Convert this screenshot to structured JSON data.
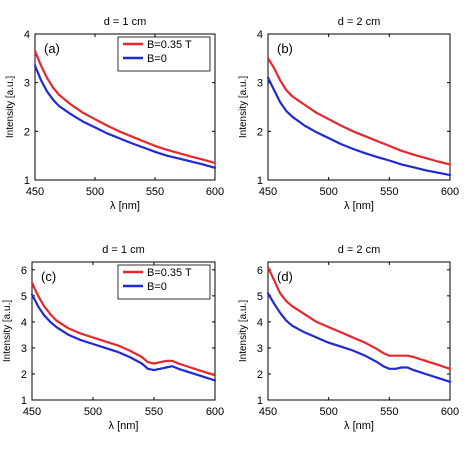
{
  "colors": {
    "red": "#e8262b",
    "blue": "#1f2ad6",
    "axis": "#000000"
  },
  "chart_data": [
    {
      "type": "line",
      "title": "d = 1 cm",
      "panel_label": "(a)",
      "xlabel": "λ [nm]",
      "ylabel": "Intensity [a.u.]",
      "xlim": [
        450,
        600
      ],
      "ylim": [
        1,
        4
      ],
      "xticks": [
        450,
        500,
        550,
        600
      ],
      "yticks": [
        1,
        2,
        3,
        4
      ],
      "legend": true,
      "legend_position": "top-right",
      "series": [
        {
          "name": "B=0.35 T",
          "color": "#e8262b",
          "x": [
            450,
            455,
            460,
            465,
            470,
            480,
            490,
            500,
            510,
            520,
            530,
            540,
            550,
            560,
            570,
            580,
            590,
            600
          ],
          "y": [
            3.65,
            3.35,
            3.1,
            2.9,
            2.75,
            2.55,
            2.38,
            2.25,
            2.12,
            2.0,
            1.9,
            1.8,
            1.7,
            1.62,
            1.55,
            1.48,
            1.42,
            1.35
          ]
        },
        {
          "name": "B=0",
          "color": "#1f2ad6",
          "x": [
            450,
            455,
            460,
            465,
            470,
            480,
            490,
            500,
            510,
            520,
            530,
            540,
            550,
            560,
            570,
            580,
            590,
            600
          ],
          "y": [
            3.35,
            3.05,
            2.82,
            2.65,
            2.52,
            2.35,
            2.2,
            2.08,
            1.96,
            1.86,
            1.76,
            1.67,
            1.58,
            1.5,
            1.44,
            1.38,
            1.32,
            1.25
          ]
        }
      ]
    },
    {
      "type": "line",
      "title": "d = 2 cm",
      "panel_label": "(b)",
      "xlabel": "λ [nm]",
      "ylabel": "Intensity [a.u.]",
      "xlim": [
        450,
        600
      ],
      "ylim": [
        1,
        4
      ],
      "xticks": [
        450,
        500,
        550,
        600
      ],
      "yticks": [
        1,
        2,
        3,
        4
      ],
      "legend": false,
      "series": [
        {
          "name": "B=0.35 T",
          "color": "#e8262b",
          "x": [
            450,
            455,
            460,
            465,
            470,
            480,
            490,
            500,
            510,
            520,
            530,
            540,
            550,
            560,
            570,
            580,
            590,
            600
          ],
          "y": [
            3.5,
            3.3,
            3.05,
            2.85,
            2.72,
            2.55,
            2.38,
            2.25,
            2.12,
            2.0,
            1.9,
            1.8,
            1.7,
            1.6,
            1.52,
            1.45,
            1.38,
            1.32
          ]
        },
        {
          "name": "B=0",
          "color": "#1f2ad6",
          "x": [
            450,
            455,
            460,
            465,
            470,
            480,
            490,
            500,
            510,
            520,
            530,
            540,
            550,
            560,
            570,
            580,
            590,
            600
          ],
          "y": [
            3.1,
            2.85,
            2.6,
            2.42,
            2.3,
            2.12,
            1.98,
            1.86,
            1.74,
            1.64,
            1.55,
            1.47,
            1.4,
            1.32,
            1.26,
            1.2,
            1.15,
            1.1
          ]
        }
      ]
    },
    {
      "type": "line",
      "title": "d = 1 cm",
      "panel_label": "(c)",
      "xlabel": "λ [nm]",
      "ylabel": "Intensity [a.u.]",
      "xlim": [
        450,
        600
      ],
      "ylim": [
        1,
        6.3
      ],
      "xticks": [
        450,
        500,
        550,
        600
      ],
      "yticks": [
        1,
        2,
        3,
        4,
        5,
        6
      ],
      "legend": true,
      "legend_position": "top-right",
      "series": [
        {
          "name": "B=0.35 T",
          "color": "#e8262b",
          "x": [
            450,
            455,
            460,
            465,
            470,
            480,
            490,
            500,
            510,
            520,
            530,
            540,
            545,
            550,
            555,
            560,
            565,
            570,
            580,
            590,
            600
          ],
          "y": [
            5.5,
            5.0,
            4.6,
            4.3,
            4.05,
            3.75,
            3.55,
            3.4,
            3.25,
            3.1,
            2.9,
            2.65,
            2.45,
            2.4,
            2.45,
            2.5,
            2.5,
            2.4,
            2.25,
            2.1,
            1.95
          ]
        },
        {
          "name": "B=0",
          "color": "#1f2ad6",
          "x": [
            450,
            455,
            460,
            465,
            470,
            480,
            490,
            500,
            510,
            520,
            530,
            540,
            545,
            550,
            555,
            560,
            565,
            570,
            580,
            590,
            600
          ],
          "y": [
            5.05,
            4.6,
            4.25,
            4.0,
            3.8,
            3.5,
            3.3,
            3.15,
            3.0,
            2.85,
            2.65,
            2.4,
            2.2,
            2.15,
            2.2,
            2.25,
            2.3,
            2.2,
            2.05,
            1.9,
            1.75
          ]
        }
      ]
    },
    {
      "type": "line",
      "title": "d = 2 cm",
      "panel_label": "(d)",
      "xlabel": "λ [nm]",
      "ylabel": "Intensity [a.u.]",
      "xlim": [
        450,
        600
      ],
      "ylim": [
        1,
        6.3
      ],
      "xticks": [
        450,
        500,
        550,
        600
      ],
      "yticks": [
        1,
        2,
        3,
        4,
        5,
        6
      ],
      "legend": false,
      "series": [
        {
          "name": "B=0.35 T",
          "color": "#e8262b",
          "x": [
            450,
            455,
            460,
            465,
            470,
            480,
            490,
            500,
            510,
            520,
            530,
            540,
            545,
            550,
            555,
            560,
            565,
            570,
            580,
            590,
            600
          ],
          "y": [
            6.1,
            5.6,
            5.1,
            4.8,
            4.6,
            4.3,
            4.0,
            3.8,
            3.6,
            3.4,
            3.2,
            2.95,
            2.8,
            2.7,
            2.7,
            2.7,
            2.7,
            2.65,
            2.5,
            2.35,
            2.2
          ]
        },
        {
          "name": "B=0",
          "color": "#1f2ad6",
          "x": [
            450,
            455,
            460,
            465,
            470,
            480,
            490,
            500,
            510,
            520,
            530,
            540,
            545,
            550,
            555,
            560,
            565,
            570,
            580,
            590,
            600
          ],
          "y": [
            5.1,
            4.7,
            4.35,
            4.05,
            3.85,
            3.6,
            3.4,
            3.2,
            3.05,
            2.9,
            2.7,
            2.45,
            2.3,
            2.2,
            2.2,
            2.25,
            2.25,
            2.15,
            2.0,
            1.85,
            1.7
          ]
        }
      ]
    }
  ]
}
